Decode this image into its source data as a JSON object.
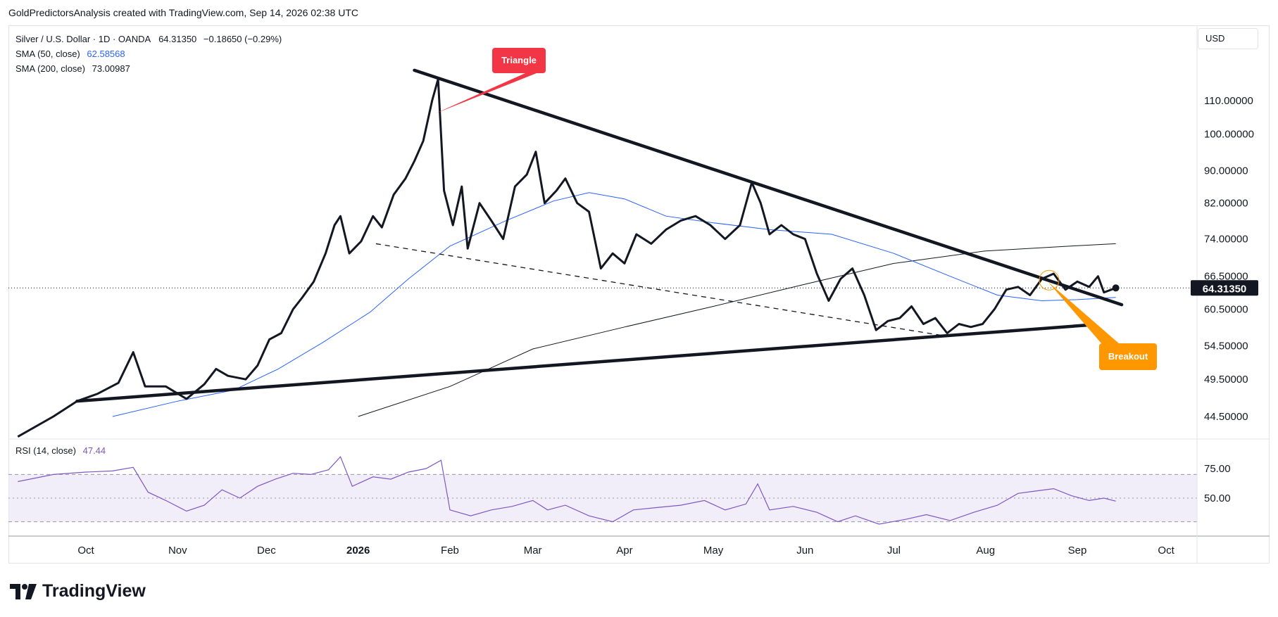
{
  "header": {
    "credit": "GoldPredictorsAnalysis created with TradingView.com, Sep 14, 2026 02:38 UTC"
  },
  "legend": {
    "symbol": "Silver / U.S. Dollar · 1D · OANDA",
    "price": "64.31350",
    "change": "−0.18650 (−0.29%)",
    "sma50_label": "SMA (50, close)",
    "sma50_value": "62.58568",
    "sma200_label": "SMA (200, close)",
    "sma200_value": "73.00987"
  },
  "currency": "USD",
  "rsi": {
    "label": "RSI (14, close)",
    "value": "47.44"
  },
  "brand": "TradingView",
  "colors": {
    "price": "#131722",
    "sma50": "#2962ff",
    "sma200": "#131722",
    "rsi": "#7e57c2",
    "rsi_band": "#ede7f6",
    "triangle_callout": "#f23645",
    "breakout_callout": "#ff9800"
  },
  "chart_data": {
    "type": "line",
    "title": "",
    "y_ticks": [
      "110.00000",
      "100.00000",
      "90.00000",
      "82.00000",
      "74.00000",
      "66.50000",
      "60.50000",
      "54.50000",
      "49.50000",
      "44.50000"
    ],
    "y_tick_values": [
      110.0,
      100.0,
      90.0,
      82.0,
      74.0,
      66.5,
      60.5,
      54.5,
      49.5,
      44.5
    ],
    "x_ticks": [
      "Oct",
      "Nov",
      "Dec",
      "2026",
      "Feb",
      "Mar",
      "Apr",
      "May",
      "Jun",
      "Jul",
      "Aug",
      "Sep",
      "Oct"
    ],
    "x_tick_dates": [
      "2025-10-01",
      "2025-11-01",
      "2025-12-01",
      "2026-01-01",
      "2026-02-01",
      "2026-03-01",
      "2026-04-01",
      "2026-05-01",
      "2026-06-01",
      "2026-07-01",
      "2026-08-01",
      "2026-09-01",
      "2026-10-01"
    ],
    "last_price_label": "64.31350",
    "last_price": 64.3135,
    "series": [
      {
        "name": "Silver / U.S. Dollar",
        "points": [
          [
            "2025-09-08",
            42.0
          ],
          [
            "2025-09-20",
            44.5
          ],
          [
            "2025-09-28",
            46.5
          ],
          [
            "2025-10-05",
            47.5
          ],
          [
            "2025-10-12",
            49.0
          ],
          [
            "2025-10-17",
            53.5
          ],
          [
            "2025-10-21",
            48.5
          ],
          [
            "2025-10-28",
            48.5
          ],
          [
            "2025-11-04",
            46.8
          ],
          [
            "2025-11-10",
            48.8
          ],
          [
            "2025-11-14",
            51.0
          ],
          [
            "2025-11-18",
            50.0
          ],
          [
            "2025-11-24",
            49.5
          ],
          [
            "2025-11-28",
            51.5
          ],
          [
            "2025-12-02",
            55.5
          ],
          [
            "2025-12-06",
            56.5
          ],
          [
            "2025-12-10",
            60.5
          ],
          [
            "2025-12-13",
            62.5
          ],
          [
            "2025-12-17",
            65.5
          ],
          [
            "2025-12-21",
            71.0
          ],
          [
            "2025-12-24",
            77.0
          ],
          [
            "2025-12-26",
            79.0
          ],
          [
            "2025-12-29",
            71.0
          ],
          [
            "2026-01-02",
            73.5
          ],
          [
            "2026-01-06",
            79.0
          ],
          [
            "2026-01-09",
            76.5
          ],
          [
            "2026-01-13",
            84.0
          ],
          [
            "2026-01-17",
            88.0
          ],
          [
            "2026-01-20",
            92.5
          ],
          [
            "2026-01-23",
            98.0
          ],
          [
            "2026-01-26",
            110.0
          ],
          [
            "2026-01-28",
            117.0
          ],
          [
            "2026-01-30",
            85.0
          ],
          [
            "2026-02-02",
            77.0
          ],
          [
            "2026-02-05",
            86.0
          ],
          [
            "2026-02-07",
            72.0
          ],
          [
            "2026-02-11",
            82.0
          ],
          [
            "2026-02-15",
            78.0
          ],
          [
            "2026-02-19",
            74.0
          ],
          [
            "2026-02-23",
            86.0
          ],
          [
            "2026-02-27",
            89.0
          ],
          [
            "2026-03-02",
            95.0
          ],
          [
            "2026-03-05",
            82.0
          ],
          [
            "2026-03-09",
            85.0
          ],
          [
            "2026-03-12",
            88.0
          ],
          [
            "2026-03-16",
            82.0
          ],
          [
            "2026-03-20",
            80.0
          ],
          [
            "2026-03-24",
            68.0
          ],
          [
            "2026-03-28",
            71.0
          ],
          [
            "2026-04-01",
            69.0
          ],
          [
            "2026-04-05",
            75.0
          ],
          [
            "2026-04-10",
            73.0
          ],
          [
            "2026-04-15",
            76.0
          ],
          [
            "2026-04-20",
            78.0
          ],
          [
            "2026-04-25",
            79.0
          ],
          [
            "2026-04-30",
            77.0
          ],
          [
            "2026-05-05",
            74.0
          ],
          [
            "2026-05-10",
            77.0
          ],
          [
            "2026-05-14",
            87.0
          ],
          [
            "2026-05-17",
            82.0
          ],
          [
            "2026-05-20",
            75.0
          ],
          [
            "2026-05-24",
            77.0
          ],
          [
            "2026-05-28",
            75.0
          ],
          [
            "2026-06-01",
            74.0
          ],
          [
            "2026-06-05",
            67.0
          ],
          [
            "2026-06-09",
            62.0
          ],
          [
            "2026-06-13",
            66.0
          ],
          [
            "2026-06-17",
            68.0
          ],
          [
            "2026-06-21",
            63.0
          ],
          [
            "2026-06-25",
            57.0
          ],
          [
            "2026-06-29",
            58.5
          ],
          [
            "2026-07-03",
            59.0
          ],
          [
            "2026-07-07",
            61.0
          ],
          [
            "2026-07-11",
            58.0
          ],
          [
            "2026-07-15",
            59.0
          ],
          [
            "2026-07-19",
            56.5
          ],
          [
            "2026-07-23",
            58.0
          ],
          [
            "2026-07-27",
            57.5
          ],
          [
            "2026-07-31",
            58.0
          ],
          [
            "2026-08-04",
            60.5
          ],
          [
            "2026-08-08",
            64.0
          ],
          [
            "2026-08-12",
            64.5
          ],
          [
            "2026-08-16",
            63.0
          ],
          [
            "2026-08-20",
            66.0
          ],
          [
            "2026-08-24",
            67.0
          ],
          [
            "2026-08-28",
            64.0
          ],
          [
            "2026-09-01",
            65.5
          ],
          [
            "2026-09-05",
            64.5
          ],
          [
            "2026-09-08",
            66.5
          ],
          [
            "2026-09-10",
            63.5
          ],
          [
            "2026-09-14",
            64.3135
          ]
        ]
      },
      {
        "name": "SMA (50, close)",
        "points": [
          [
            "2025-10-10",
            44.5
          ],
          [
            "2025-11-01",
            46.5
          ],
          [
            "2025-11-20",
            48.0
          ],
          [
            "2025-12-05",
            51.0
          ],
          [
            "2025-12-20",
            55.0
          ],
          [
            "2026-01-05",
            60.0
          ],
          [
            "2026-01-18",
            66.0
          ],
          [
            "2026-02-01",
            72.5
          ],
          [
            "2026-02-20",
            78.0
          ],
          [
            "2026-03-08",
            82.5
          ],
          [
            "2026-03-20",
            84.5
          ],
          [
            "2026-04-01",
            83.0
          ],
          [
            "2026-04-15",
            79.0
          ],
          [
            "2026-05-01",
            77.5
          ],
          [
            "2026-05-20",
            76.0
          ],
          [
            "2026-06-10",
            75.0
          ],
          [
            "2026-07-01",
            71.0
          ],
          [
            "2026-07-20",
            66.5
          ],
          [
            "2026-08-05",
            63.0
          ],
          [
            "2026-08-20",
            62.0
          ],
          [
            "2026-09-01",
            62.2
          ],
          [
            "2026-09-14",
            62.58568
          ]
        ]
      },
      {
        "name": "SMA (200, close)",
        "points": [
          [
            "2026-01-01",
            44.5
          ],
          [
            "2026-02-01",
            48.5
          ],
          [
            "2026-03-01",
            54.0
          ],
          [
            "2026-04-01",
            57.5
          ],
          [
            "2026-05-01",
            61.0
          ],
          [
            "2026-06-01",
            65.0
          ],
          [
            "2026-07-01",
            69.0
          ],
          [
            "2026-08-01",
            71.5
          ],
          [
            "2026-09-01",
            72.6
          ],
          [
            "2026-09-14",
            73.00987
          ]
        ]
      }
    ],
    "trendlines": [
      {
        "from": [
          "2026-01-20",
          120.0
        ],
        "to": [
          "2026-09-16",
          61.3
        ],
        "style": "solid"
      },
      {
        "from": [
          "2025-09-28",
          46.5
        ],
        "to": [
          "2026-09-04",
          57.8
        ],
        "style": "solid"
      },
      {
        "from": [
          "2026-01-07",
          73.0
        ],
        "to": [
          "2026-07-19",
          56.0
        ],
        "style": "dashed"
      }
    ],
    "annotations": [
      {
        "text": "Triangle",
        "anchor": [
          "2026-01-27",
          106.0
        ]
      },
      {
        "text": "Breakout",
        "anchor": [
          "2026-08-22",
          65.5
        ]
      }
    ],
    "rsi_panel": {
      "y_ticks": [
        "75.00",
        "50.00"
      ],
      "y_tick_values": [
        75,
        50
      ],
      "upper_band": 70,
      "lower_band": 30,
      "ylim": [
        25,
        90
      ],
      "points": [
        [
          "2025-09-08",
          64
        ],
        [
          "2025-09-20",
          70
        ],
        [
          "2025-10-01",
          72
        ],
        [
          "2025-10-10",
          73
        ],
        [
          "2025-10-17",
          76
        ],
        [
          "2025-10-22",
          55
        ],
        [
          "2025-10-28",
          48
        ],
        [
          "2025-11-04",
          39
        ],
        [
          "2025-11-10",
          44
        ],
        [
          "2025-11-16",
          57
        ],
        [
          "2025-11-22",
          50
        ],
        [
          "2025-11-28",
          60
        ],
        [
          "2025-12-04",
          66
        ],
        [
          "2025-12-10",
          71
        ],
        [
          "2025-12-16",
          70
        ],
        [
          "2025-12-22",
          74
        ],
        [
          "2025-12-26",
          85
        ],
        [
          "2025-12-30",
          60
        ],
        [
          "2026-01-06",
          68
        ],
        [
          "2026-01-12",
          66
        ],
        [
          "2026-01-18",
          72
        ],
        [
          "2026-01-24",
          75
        ],
        [
          "2026-01-29",
          82
        ],
        [
          "2026-02-01",
          40
        ],
        [
          "2026-02-08",
          35
        ],
        [
          "2026-02-15",
          40
        ],
        [
          "2026-02-22",
          43
        ],
        [
          "2026-03-01",
          48
        ],
        [
          "2026-03-06",
          40
        ],
        [
          "2026-03-12",
          44
        ],
        [
          "2026-03-20",
          35
        ],
        [
          "2026-03-28",
          30
        ],
        [
          "2026-04-04",
          40
        ],
        [
          "2026-04-12",
          42
        ],
        [
          "2026-04-20",
          44
        ],
        [
          "2026-04-28",
          48
        ],
        [
          "2026-05-05",
          40
        ],
        [
          "2026-05-12",
          45
        ],
        [
          "2026-05-16",
          62
        ],
        [
          "2026-05-20",
          40
        ],
        [
          "2026-05-28",
          43
        ],
        [
          "2026-06-05",
          38
        ],
        [
          "2026-06-12",
          30
        ],
        [
          "2026-06-18",
          35
        ],
        [
          "2026-06-26",
          28
        ],
        [
          "2026-07-05",
          32
        ],
        [
          "2026-07-12",
          36
        ],
        [
          "2026-07-20",
          31
        ],
        [
          "2026-07-28",
          38
        ],
        [
          "2026-08-05",
          44
        ],
        [
          "2026-08-12",
          54
        ],
        [
          "2026-08-18",
          56
        ],
        [
          "2026-08-24",
          58
        ],
        [
          "2026-08-30",
          52
        ],
        [
          "2026-09-05",
          48
        ],
        [
          "2026-09-10",
          50
        ],
        [
          "2026-09-14",
          47.44
        ]
      ]
    }
  }
}
